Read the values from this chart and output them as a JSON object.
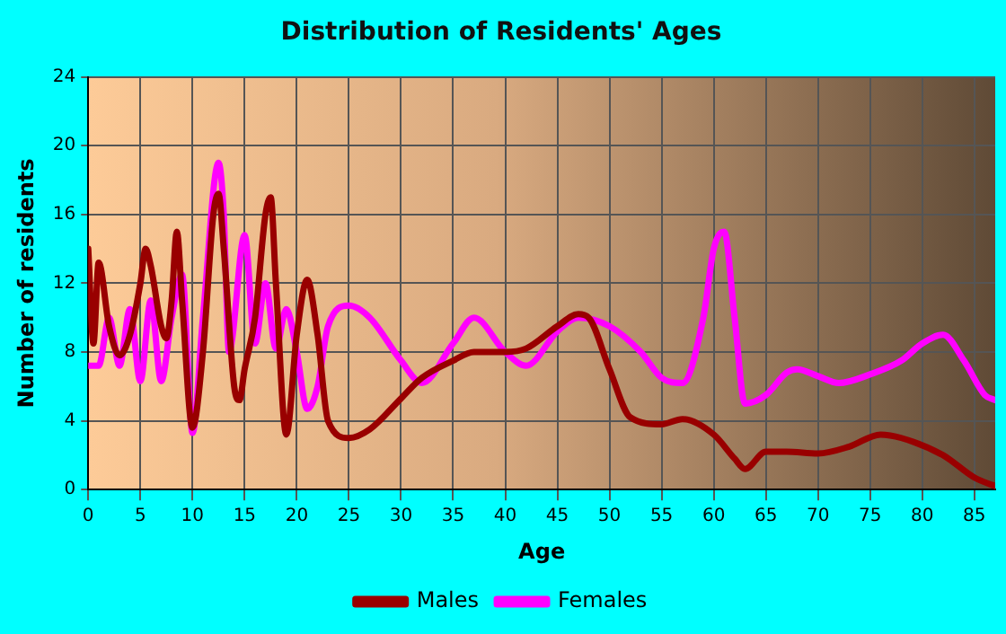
{
  "chart_data": {
    "type": "line",
    "title": "Distribution of Residents' Ages",
    "xlabel": "Age",
    "ylabel": "Number of residents",
    "xlim": [
      0,
      87
    ],
    "xticks": [
      0,
      5,
      10,
      15,
      20,
      25,
      30,
      35,
      40,
      45,
      50,
      55,
      60,
      65,
      70,
      75,
      80,
      85
    ],
    "ylim": [
      0,
      24
    ],
    "yticks": [
      0,
      4,
      8,
      12,
      16,
      20,
      24
    ],
    "grid": true,
    "legend": "bottom",
    "marker": "none",
    "line_style": "solid",
    "series": [
      {
        "name": "Males",
        "color": "#990000",
        "x": [
          0,
          0.5,
          1,
          2,
          3,
          4,
          5,
          5.5,
          6,
          7,
          7.5,
          8,
          8.5,
          9,
          10,
          11,
          12,
          12.5,
          13,
          14,
          14.5,
          15,
          16,
          17,
          17.5,
          18,
          19,
          20,
          21,
          22,
          23,
          25,
          27,
          30,
          32,
          35,
          37,
          40,
          42,
          45,
          47,
          48,
          50,
          52,
          55,
          57,
          60,
          62,
          63,
          65,
          67,
          70,
          73,
          76,
          78,
          82,
          85,
          87
        ],
        "values": [
          14,
          8.5,
          13.2,
          9.5,
          7.8,
          9,
          12,
          14,
          13,
          9.5,
          8.8,
          11,
          15,
          11,
          3.6,
          8,
          16,
          17.2,
          14,
          6,
          5.2,
          7,
          10,
          16,
          17,
          12,
          3.2,
          9,
          12.2,
          9,
          4,
          3,
          3.5,
          5.3,
          6.5,
          7.5,
          8,
          8,
          8.2,
          9.5,
          10.2,
          10,
          7,
          4.2,
          3.8,
          4.1,
          3.2,
          1.8,
          1.2,
          2.2,
          2.2,
          2.1,
          2.5,
          3.2,
          3,
          2,
          0.7,
          0.2
        ]
      },
      {
        "name": "Females",
        "color": "#ff00ff",
        "x": [
          0,
          1,
          2,
          3,
          4,
          5,
          6,
          7,
          8,
          9,
          10,
          11,
          12.5,
          13,
          13.5,
          15,
          16,
          17,
          18,
          19,
          20,
          21,
          22,
          23,
          25,
          27,
          30,
          32,
          35,
          37,
          40,
          42,
          45,
          47,
          50,
          53,
          55,
          57,
          59,
          60,
          61,
          62,
          63,
          65,
          67,
          68,
          70,
          72,
          75,
          78,
          80,
          82,
          84,
          86,
          87
        ],
        "values": [
          7.2,
          7.2,
          10,
          7.2,
          10.5,
          6.3,
          11,
          6.3,
          10,
          12.5,
          3.3,
          10,
          19,
          16,
          8,
          14.8,
          8.5,
          12,
          8.2,
          10.5,
          8,
          4.7,
          6,
          9.5,
          10.7,
          10,
          7.5,
          6.2,
          8.5,
          10,
          8,
          7.2,
          9.2,
          10,
          9.5,
          8,
          6.5,
          6.2,
          10,
          14,
          15,
          10,
          5,
          5.5,
          6.8,
          7,
          6.6,
          6.2,
          6.7,
          7.5,
          8.5,
          9,
          7.5,
          5.5,
          5.2
        ]
      }
    ]
  }
}
